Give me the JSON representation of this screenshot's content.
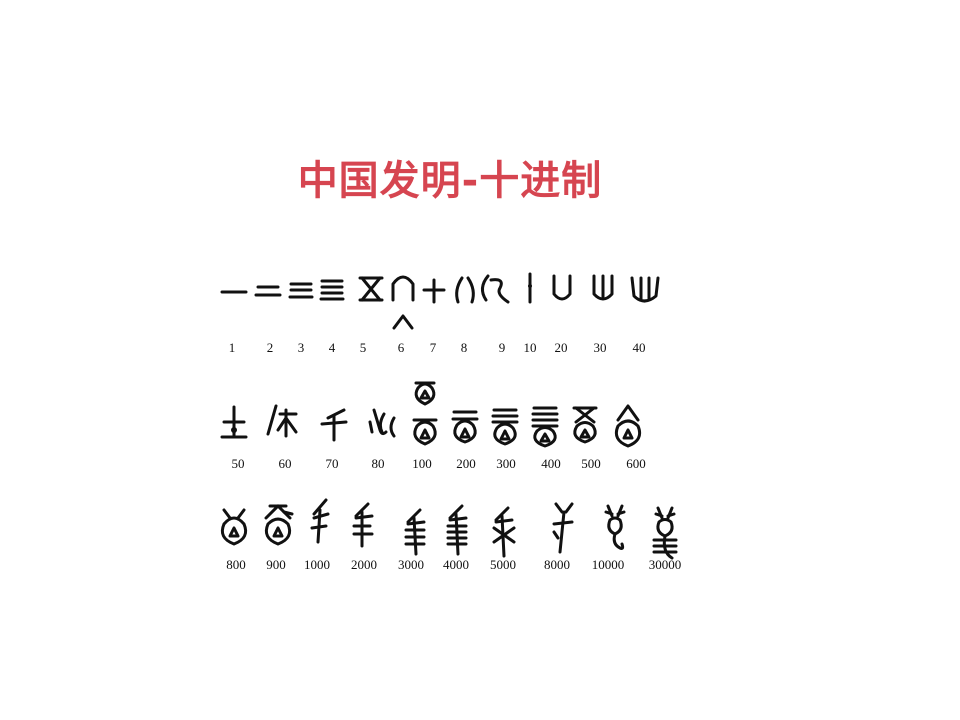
{
  "slide": {
    "title": "中国发明-十进制",
    "title_color": "#d64550"
  },
  "numerals": {
    "row1": [
      "1",
      "2",
      "3",
      "4",
      "5",
      "6",
      "7",
      "8",
      "9",
      "10",
      "20",
      "30",
      "40"
    ],
    "row2": [
      "50",
      "60",
      "70",
      "80",
      "100",
      "200",
      "300",
      "400",
      "500",
      "600"
    ],
    "row3": [
      "800",
      "900",
      "1000",
      "2000",
      "3000",
      "4000",
      "5000",
      "8000",
      "10000",
      "30000"
    ]
  }
}
